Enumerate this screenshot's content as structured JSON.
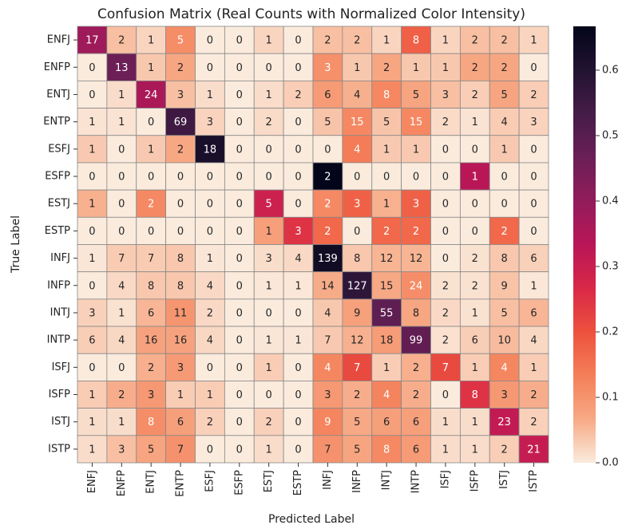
{
  "chart_data": {
    "type": "heatmap",
    "title": "Confusion Matrix (Real Counts with Normalized Color Intensity)",
    "xlabel": "Predicted Label",
    "ylabel": "True Label",
    "x_categories": [
      "ENFJ",
      "ENFP",
      "ENTJ",
      "ENTP",
      "ESFJ",
      "ESFP",
      "ESTJ",
      "ESTP",
      "INFJ",
      "INFP",
      "INTJ",
      "INTP",
      "ISFJ",
      "ISFP",
      "ISTJ",
      "ISTP"
    ],
    "y_categories": [
      "ENFJ",
      "ENFP",
      "ENTJ",
      "ENTP",
      "ESFJ",
      "ESFP",
      "ESTJ",
      "ESTP",
      "INFJ",
      "INFP",
      "INTJ",
      "INTP",
      "ISFJ",
      "ISFP",
      "ISTJ",
      "ISTP"
    ],
    "values": [
      [
        17,
        2,
        1,
        5,
        0,
        0,
        1,
        0,
        2,
        2,
        1,
        8,
        1,
        2,
        2,
        1
      ],
      [
        0,
        13,
        1,
        2,
        0,
        0,
        0,
        0,
        3,
        1,
        2,
        1,
        1,
        2,
        2,
        0
      ],
      [
        0,
        1,
        24,
        3,
        1,
        0,
        1,
        2,
        6,
        4,
        8,
        5,
        3,
        2,
        5,
        2
      ],
      [
        1,
        1,
        0,
        69,
        3,
        0,
        2,
        0,
        5,
        15,
        5,
        15,
        2,
        1,
        4,
        3
      ],
      [
        1,
        0,
        1,
        2,
        18,
        0,
        0,
        0,
        0,
        4,
        1,
        1,
        0,
        0,
        1,
        0
      ],
      [
        0,
        0,
        0,
        0,
        0,
        0,
        0,
        0,
        2,
        0,
        0,
        0,
        0,
        1,
        0,
        0
      ],
      [
        1,
        0,
        2,
        0,
        0,
        0,
        5,
        0,
        2,
        3,
        1,
        3,
        0,
        0,
        0,
        0
      ],
      [
        0,
        0,
        0,
        0,
        0,
        0,
        1,
        3,
        2,
        0,
        2,
        2,
        0,
        0,
        2,
        0
      ],
      [
        1,
        7,
        7,
        8,
        1,
        0,
        3,
        4,
        139,
        8,
        12,
        12,
        0,
        2,
        8,
        6
      ],
      [
        0,
        4,
        8,
        8,
        4,
        0,
        1,
        1,
        14,
        127,
        15,
        24,
        2,
        2,
        9,
        1
      ],
      [
        3,
        1,
        6,
        11,
        2,
        0,
        0,
        0,
        4,
        9,
        55,
        8,
        2,
        1,
        5,
        6
      ],
      [
        6,
        4,
        16,
        16,
        4,
        0,
        1,
        1,
        7,
        12,
        18,
        99,
        2,
        6,
        10,
        4
      ],
      [
        0,
        0,
        2,
        3,
        0,
        0,
        1,
        0,
        4,
        7,
        1,
        2,
        7,
        1,
        4,
        1
      ],
      [
        1,
        2,
        3,
        1,
        1,
        0,
        0,
        0,
        3,
        2,
        4,
        2,
        0,
        8,
        3,
        2
      ],
      [
        1,
        1,
        8,
        6,
        2,
        0,
        2,
        0,
        9,
        5,
        6,
        6,
        1,
        1,
        23,
        2
      ],
      [
        1,
        3,
        5,
        7,
        0,
        0,
        1,
        0,
        7,
        5,
        8,
        6,
        1,
        1,
        2,
        21
      ]
    ],
    "color_normalization": "row",
    "colormap": "rocket_r",
    "clim": [
      0,
      0.667
    ],
    "colorbar_ticks": [
      {
        "value": 0,
        "label": "0.0"
      },
      0.1,
      0.2,
      0.3,
      0.4,
      0.5,
      0.6
    ]
  }
}
